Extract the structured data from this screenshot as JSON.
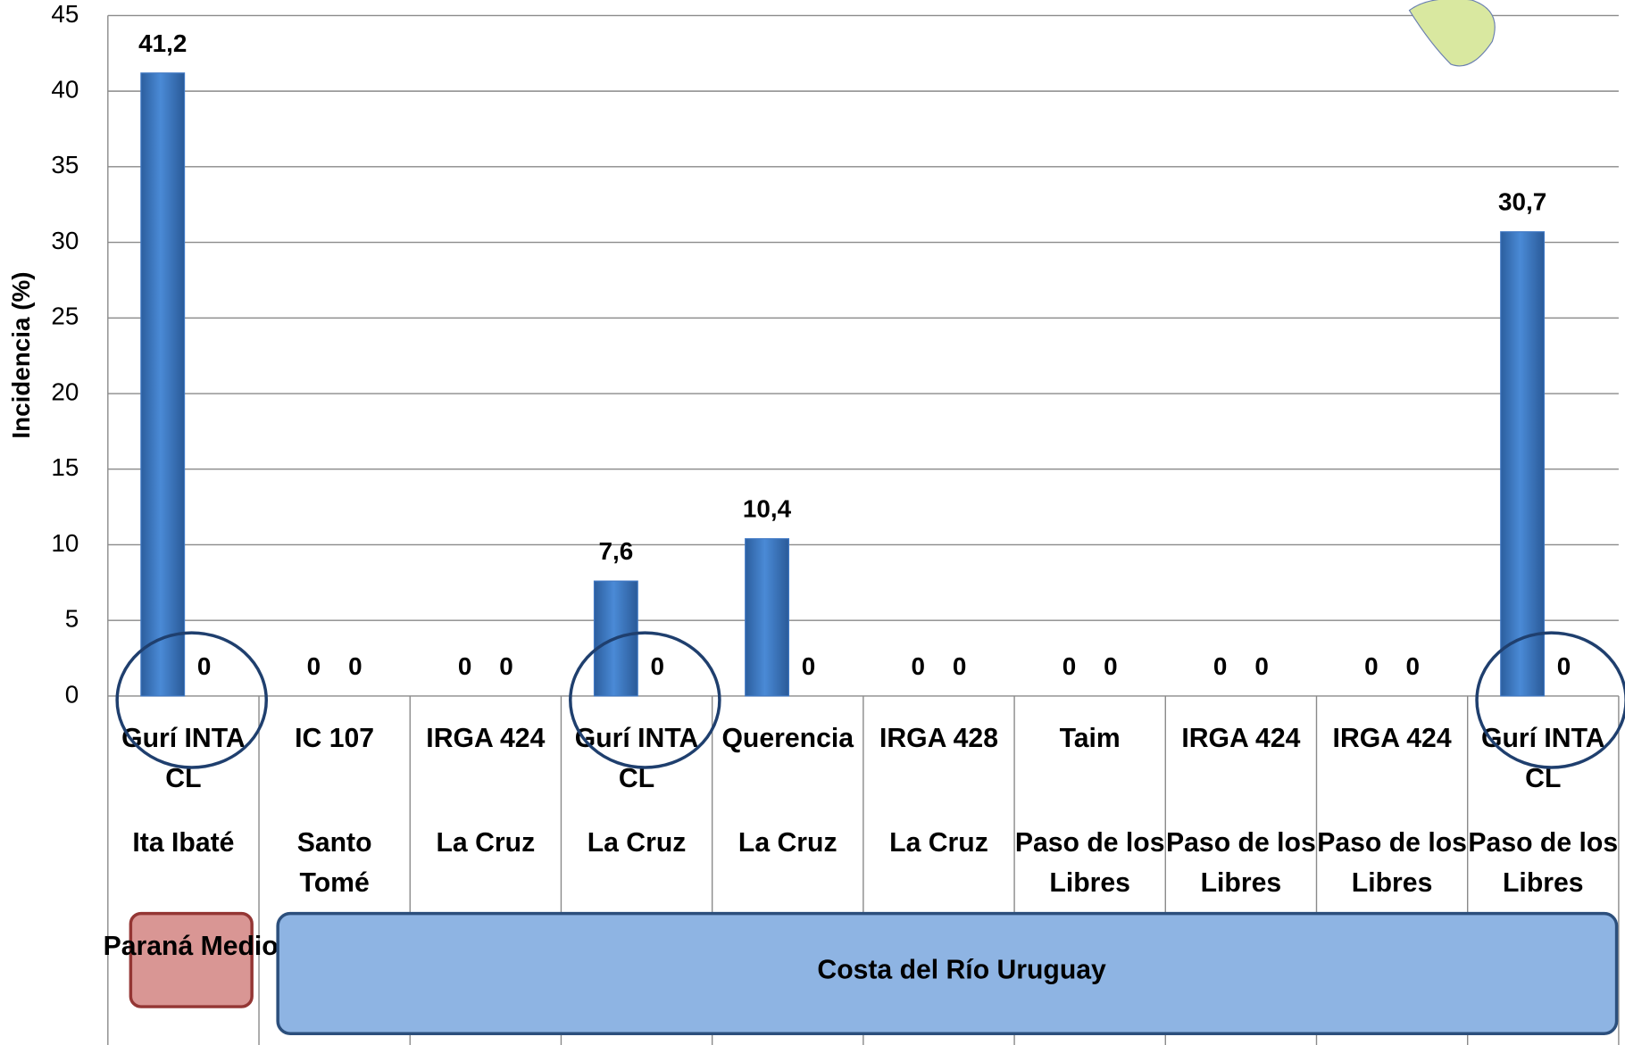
{
  "chart_data": {
    "type": "bar",
    "y_label": "Incidencia (%)",
    "categories": [
      "Gurí INTA CL",
      "IC 107",
      "IRGA 424",
      "Gurí INTA CL",
      "Querencia",
      "IRGA 428",
      "Taim",
      "IRGA 424",
      "IRGA 424",
      "Gurí INTA CL"
    ],
    "locations": [
      "Ita Ibaté",
      "Santo Tomé",
      "La Cruz",
      "La Cruz",
      "La Cruz",
      "La Cruz",
      "Paso de los Libres",
      "Paso de los Libres",
      "Paso de los Libres",
      "Paso de los Libres"
    ],
    "regions": [
      "Paraná Medio",
      "Costa del Río Uruguay"
    ],
    "series": [
      {
        "color": "#3f78c4",
        "values": [
          41.2,
          0,
          0,
          7.6,
          10.4,
          0,
          0,
          0,
          0,
          30.7
        ],
        "value_labels": [
          "41,2",
          "0",
          "0",
          "7,6",
          "10,4",
          "0",
          "0",
          "0",
          "0",
          "30,7"
        ]
      },
      {
        "color": "#c0504d",
        "values": [
          0,
          0,
          0,
          0,
          0,
          0,
          0,
          0,
          0,
          0
        ],
        "value_labels": [
          "0",
          "0",
          "0",
          "0",
          "0",
          "0",
          "0",
          "0",
          "0",
          "0"
        ]
      }
    ],
    "ylim": [
      0,
      45
    ],
    "yticks": [
      0,
      5,
      10,
      15,
      20,
      25,
      30,
      35,
      40,
      45
    ],
    "grid": true
  }
}
